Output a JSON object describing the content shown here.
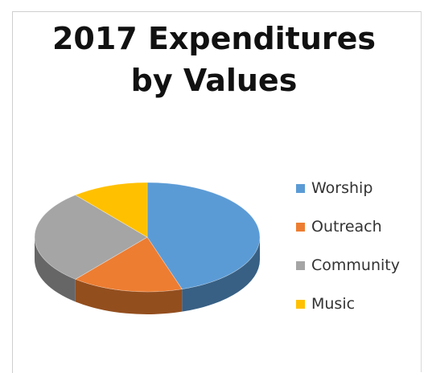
{
  "chart_data": {
    "type": "pie",
    "title": "2017 Expenditures by Values",
    "title_lines": [
      "2017 Expenditures",
      "by Values"
    ],
    "style": "3d",
    "legend_position": "right",
    "series": [
      {
        "labels": [
          "Worship",
          "Outreach",
          "Community",
          "Music"
        ],
        "values": [
          45,
          16,
          28,
          11
        ]
      }
    ],
    "colors": [
      "#5b9bd5",
      "#ed7d31",
      "#a5a5a5",
      "#ffc000"
    ]
  }
}
